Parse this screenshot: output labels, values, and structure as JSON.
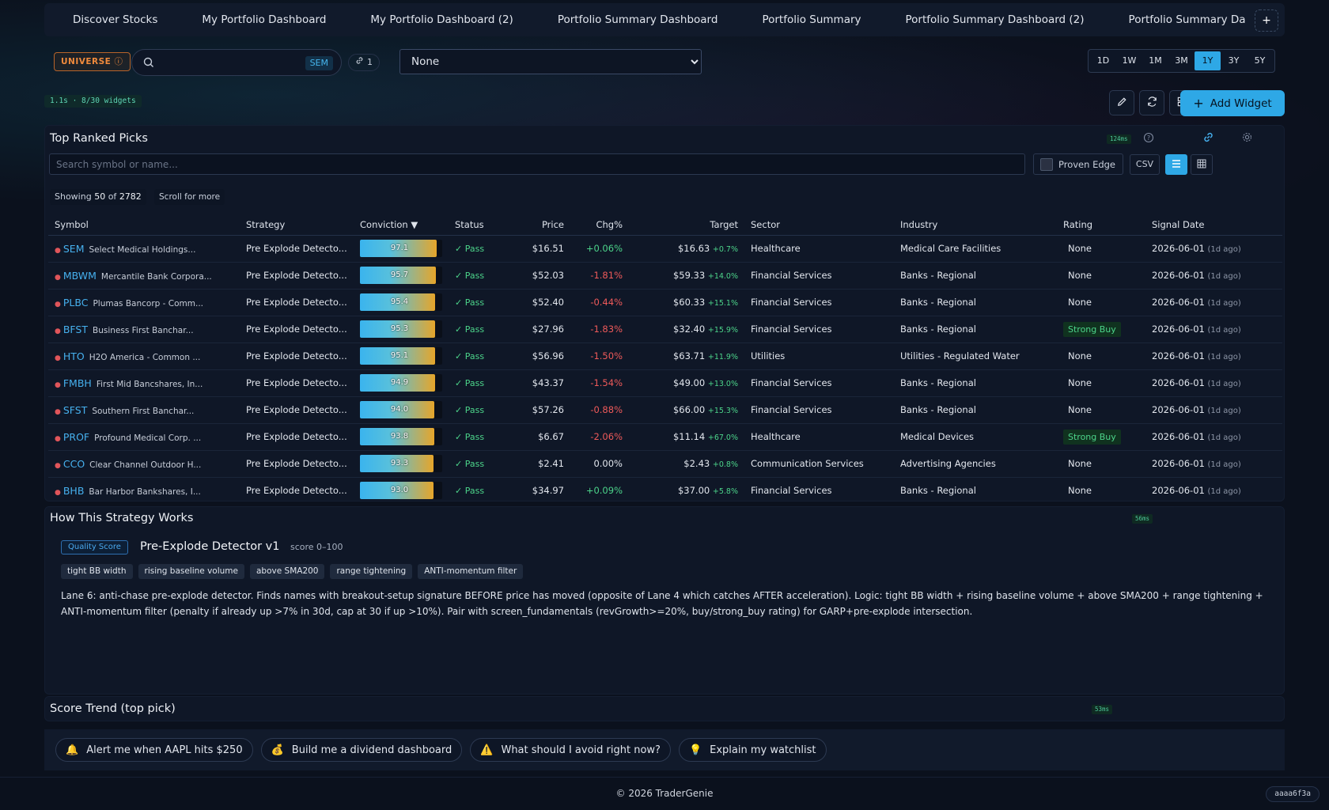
{
  "tabs": [
    "Discover Stocks",
    "My Portfolio Dashboard",
    "My Portfolio Dashboard (2)",
    "Portfolio Summary Dashboard",
    "Portfolio Summary",
    "Portfolio Summary Dashboard (2)",
    "Portfolio Summary Da"
  ],
  "tab_add": "+",
  "toolbar": {
    "universe": "UNIVERSE",
    "search_value": "",
    "search_mode": "SEM",
    "link_count": "1",
    "select_value": "None",
    "ranges": [
      "1D",
      "1W",
      "1M",
      "3M",
      "1Y",
      "3Y",
      "5Y"
    ],
    "active_range": "1Y"
  },
  "meta": {
    "timing": "1.1s · 8/30 widgets",
    "add_widget": "Add Widget"
  },
  "picks": {
    "title": "Top Ranked Picks",
    "timing": "124ms",
    "search_placeholder": "Search symbol or name...",
    "proven_edge": "Proven Edge",
    "csv": "CSV",
    "showing_prefix": "Showing",
    "showing_count": "50",
    "showing_of": "of",
    "showing_total": "2782",
    "scroll_more": "Scroll for more",
    "columns": [
      "Symbol",
      "Strategy",
      "Conviction",
      "Status",
      "Price",
      "Chg%",
      "Target",
      "Sector",
      "Industry",
      "Rating",
      "Signal Date"
    ],
    "rows": [
      {
        "symbol": "SEM",
        "name": "Select Medical Holdings...",
        "strategy": "Pre Explode Detecto...",
        "conviction": 97.1,
        "conviction_label": "97.1",
        "status": "✓ Pass",
        "price": "$16.51",
        "chg": "+0.06%",
        "chg_dir": "pos",
        "target": "$16.63",
        "target_pct": "+0.7%",
        "sector": "Healthcare",
        "industry": "Medical Care Facilities",
        "rating": "None",
        "date": "2026-06-01",
        "ago": "(1d ago)"
      },
      {
        "symbol": "MBWM",
        "name": "Mercantile Bank Corpora...",
        "strategy": "Pre Explode Detecto...",
        "conviction": 95.7,
        "conviction_label": "95.7",
        "status": "✓ Pass",
        "price": "$52.03",
        "chg": "-1.81%",
        "chg_dir": "neg",
        "target": "$59.33",
        "target_pct": "+14.0%",
        "sector": "Financial Services",
        "industry": "Banks - Regional",
        "rating": "None",
        "date": "2026-06-01",
        "ago": "(1d ago)"
      },
      {
        "symbol": "PLBC",
        "name": "Plumas Bancorp - Comm...",
        "strategy": "Pre Explode Detecto...",
        "conviction": 95.4,
        "conviction_label": "95.4",
        "status": "✓ Pass",
        "price": "$52.40",
        "chg": "-0.44%",
        "chg_dir": "neg",
        "target": "$60.33",
        "target_pct": "+15.1%",
        "sector": "Financial Services",
        "industry": "Banks - Regional",
        "rating": "None",
        "date": "2026-06-01",
        "ago": "(1d ago)"
      },
      {
        "symbol": "BFST",
        "name": "Business First Banchar...",
        "strategy": "Pre Explode Detecto...",
        "conviction": 95.3,
        "conviction_label": "95.3",
        "status": "✓ Pass",
        "price": "$27.96",
        "chg": "-1.83%",
        "chg_dir": "neg",
        "target": "$32.40",
        "target_pct": "+15.9%",
        "sector": "Financial Services",
        "industry": "Banks - Regional",
        "rating": "Strong Buy",
        "date": "2026-06-01",
        "ago": "(1d ago)"
      },
      {
        "symbol": "HTO",
        "name": "H2O America - Common ...",
        "strategy": "Pre Explode Detecto...",
        "conviction": 95.1,
        "conviction_label": "95.1",
        "status": "✓ Pass",
        "price": "$56.96",
        "chg": "-1.50%",
        "chg_dir": "neg",
        "target": "$63.71",
        "target_pct": "+11.9%",
        "sector": "Utilities",
        "industry": "Utilities - Regulated Water",
        "rating": "None",
        "date": "2026-06-01",
        "ago": "(1d ago)"
      },
      {
        "symbol": "FMBH",
        "name": "First Mid Bancshares, In...",
        "strategy": "Pre Explode Detecto...",
        "conviction": 94.9,
        "conviction_label": "94.9",
        "status": "✓ Pass",
        "price": "$43.37",
        "chg": "-1.54%",
        "chg_dir": "neg",
        "target": "$49.00",
        "target_pct": "+13.0%",
        "sector": "Financial Services",
        "industry": "Banks - Regional",
        "rating": "None",
        "date": "2026-06-01",
        "ago": "(1d ago)"
      },
      {
        "symbol": "SFST",
        "name": "Southern First Banchar...",
        "strategy": "Pre Explode Detecto...",
        "conviction": 94.0,
        "conviction_label": "94.0",
        "status": "✓ Pass",
        "price": "$57.26",
        "chg": "-0.88%",
        "chg_dir": "neg",
        "target": "$66.00",
        "target_pct": "+15.3%",
        "sector": "Financial Services",
        "industry": "Banks - Regional",
        "rating": "None",
        "date": "2026-06-01",
        "ago": "(1d ago)"
      },
      {
        "symbol": "PROF",
        "name": "Profound Medical Corp. ...",
        "strategy": "Pre Explode Detecto...",
        "conviction": 93.8,
        "conviction_label": "93.8",
        "status": "✓ Pass",
        "price": "$6.67",
        "chg": "-2.06%",
        "chg_dir": "neg",
        "target": "$11.14",
        "target_pct": "+67.0%",
        "sector": "Healthcare",
        "industry": "Medical Devices",
        "rating": "Strong Buy",
        "date": "2026-06-01",
        "ago": "(1d ago)"
      },
      {
        "symbol": "CCO",
        "name": "Clear Channel Outdoor H...",
        "strategy": "Pre Explode Detecto...",
        "conviction": 93.3,
        "conviction_label": "93.3",
        "status": "✓ Pass",
        "price": "$2.41",
        "chg": "0.00%",
        "chg_dir": "neu",
        "target": "$2.43",
        "target_pct": "+0.8%",
        "sector": "Communication Services",
        "industry": "Advertising Agencies",
        "rating": "None",
        "date": "2026-06-01",
        "ago": "(1d ago)"
      },
      {
        "symbol": "BHB",
        "name": "Bar Harbor Bankshares, I...",
        "strategy": "Pre Explode Detecto...",
        "conviction": 93.0,
        "conviction_label": "93.0",
        "status": "✓ Pass",
        "price": "$34.97",
        "chg": "+0.09%",
        "chg_dir": "pos",
        "target": "$37.00",
        "target_pct": "+5.8%",
        "sector": "Financial Services",
        "industry": "Banks - Regional",
        "rating": "None",
        "date": "2026-06-01",
        "ago": "(1d ago)"
      }
    ]
  },
  "how": {
    "title": "How This Strategy Works",
    "timing": "56ms",
    "badge": "Quality Score",
    "name": "Pre-Explode Detector v1",
    "score_range": "score 0–100",
    "tags": [
      "tight BB width",
      "rising baseline volume",
      "above SMA200",
      "range tightening",
      "ANTI-momentum filter"
    ],
    "description": "Lane 6: anti-chase pre-explode detector. Finds names with breakout-setup signature BEFORE price has moved (opposite of Lane 4 which catches AFTER acceleration). Logic: tight BB width + rising baseline volume + above SMA200 + range tightening + ANTI-momentum filter (penalty if already up >7% in 30d, cap at 30 if up >10%). Pair with screen_fundamentals (revGrowth>=20%, buy/strong_buy rating) for GARP+pre-explode intersection."
  },
  "trend": {
    "title": "Score Trend (top pick)",
    "timing": "53ms"
  },
  "prompts": [
    {
      "icon": "🔔",
      "label": "Alert me when AAPL hits $250"
    },
    {
      "icon": "💰",
      "label": "Build me a dividend dashboard"
    },
    {
      "icon": "⚠️",
      "label": "What should I avoid right now?"
    },
    {
      "icon": "💡",
      "label": "Explain my watchlist"
    }
  ],
  "footer": "© 2026 TraderGenie",
  "build_hash": "aaaa6f3a"
}
